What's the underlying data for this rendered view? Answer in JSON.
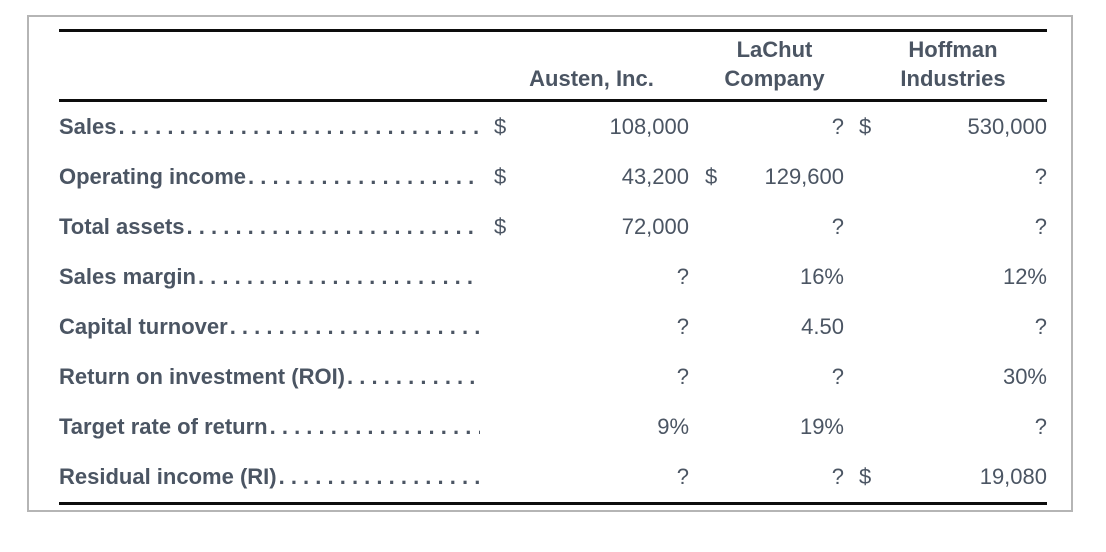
{
  "colors": {
    "text": "#4b5563",
    "rule": "#0d0d0d",
    "frame_border": "#b5b5b5",
    "background": "#ffffff"
  },
  "table": {
    "leader_dots": ". . . . . . . . . . . . . . . . . . . . . . . . . . . . . . . . . . . . . . . . . . . .",
    "columns": [
      {
        "line1": "",
        "line2": "Austen, Inc."
      },
      {
        "line1": "LaChut",
        "line2": "Company"
      },
      {
        "line1": "Hoffman",
        "line2": "Industries"
      }
    ],
    "rows": [
      {
        "label": "Sales",
        "cells": [
          {
            "currency": "$",
            "value": "108,000"
          },
          {
            "currency": "",
            "value": "?"
          },
          {
            "currency": "$",
            "value": "530,000"
          }
        ]
      },
      {
        "label": "Operating income",
        "cells": [
          {
            "currency": "$",
            "value": "43,200"
          },
          {
            "currency": "$",
            "value": "129,600"
          },
          {
            "currency": "",
            "value": "?"
          }
        ]
      },
      {
        "label": "Total assets",
        "cells": [
          {
            "currency": "$",
            "value": "72,000"
          },
          {
            "currency": "",
            "value": "?"
          },
          {
            "currency": "",
            "value": "?"
          }
        ]
      },
      {
        "label": "Sales margin",
        "cells": [
          {
            "currency": "",
            "value": "?"
          },
          {
            "currency": "",
            "value": "16%"
          },
          {
            "currency": "",
            "value": "12%"
          }
        ]
      },
      {
        "label": "Capital turnover",
        "cells": [
          {
            "currency": "",
            "value": "?"
          },
          {
            "currency": "",
            "value": "4.50"
          },
          {
            "currency": "",
            "value": "?"
          }
        ]
      },
      {
        "label": "Return on investment (ROI)",
        "cells": [
          {
            "currency": "",
            "value": "?"
          },
          {
            "currency": "",
            "value": "?"
          },
          {
            "currency": "",
            "value": "30%"
          }
        ]
      },
      {
        "label": "Target rate of return",
        "cells": [
          {
            "currency": "",
            "value": "9%"
          },
          {
            "currency": "",
            "value": "19%"
          },
          {
            "currency": "",
            "value": "?"
          }
        ]
      },
      {
        "label": "Residual income (RI)",
        "cells": [
          {
            "currency": "",
            "value": "?"
          },
          {
            "currency": "",
            "value": "?"
          },
          {
            "currency": "$",
            "value": "19,080"
          }
        ]
      }
    ]
  }
}
